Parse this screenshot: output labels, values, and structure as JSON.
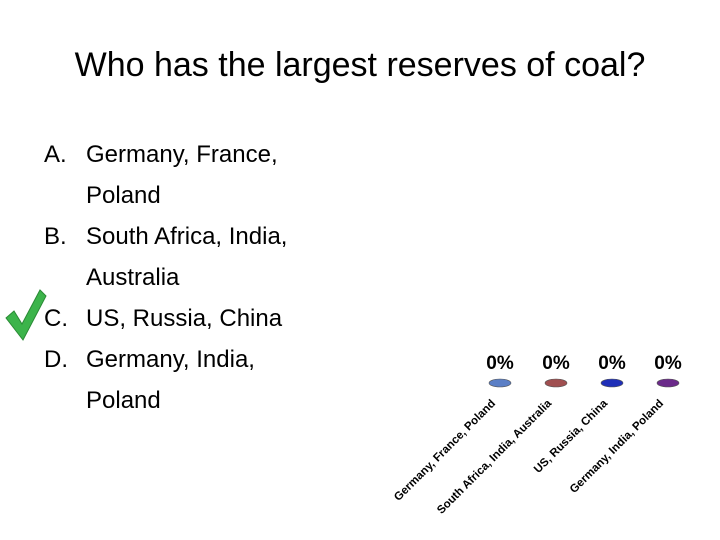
{
  "title": "Who has the largest reserves of coal?",
  "options": [
    {
      "letter": "A.",
      "text": "Germany, France, Poland"
    },
    {
      "letter": "B.",
      "text": "South Africa, India, Australia"
    },
    {
      "letter": "C.",
      "text": "US, Russia, China"
    },
    {
      "letter": "D.",
      "text": "Germany, India, Poland"
    }
  ],
  "chart_data": {
    "type": "bar",
    "categories": [
      "Germany, France, Poland",
      "South Africa, India, Australia",
      "US, Russia, China",
      "Germany, India, Poland"
    ],
    "values": [
      0,
      0,
      0,
      0
    ],
    "value_labels": [
      "0%",
      "0%",
      "0%",
      "0%"
    ],
    "colors": [
      "#5b7fc6",
      "#a04f50",
      "#1f2fb8",
      "#6b2a8a"
    ]
  }
}
